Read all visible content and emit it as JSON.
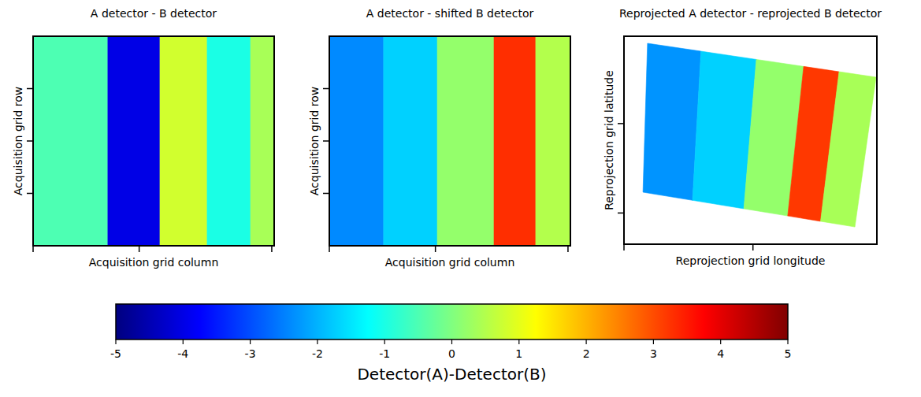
{
  "chart_data": [
    {
      "type": "heatmap",
      "title": "A detector - B detector",
      "x_label": "Acquisition grid column",
      "y_label": "Acquisition grid row",
      "xlim": [
        0,
        1
      ],
      "ylim": [
        0,
        1
      ],
      "xticks": [
        0,
        0.44,
        0.99
      ],
      "yticks": [
        0.25,
        0.5,
        0.75
      ],
      "tick_labels": false,
      "stripe_edges": [
        0,
        0.31,
        0.526,
        0.722,
        0.902,
        1
      ],
      "stripe_values": [
        -0.5,
        -4.0,
        0.8,
        -1.0,
        0.4
      ]
    },
    {
      "type": "heatmap",
      "title": "A detector - shifted B detector",
      "x_label": "Acquisition grid column",
      "y_label": "Acquisition grid row",
      "xlim": [
        0,
        1
      ],
      "ylim": [
        0,
        1
      ],
      "xticks": [
        0,
        0.44,
        0.99
      ],
      "yticks": [
        0.25,
        0.5,
        0.75
      ],
      "tick_labels": false,
      "stripe_edges": [
        0,
        0.225,
        0.448,
        0.683,
        0.856,
        1
      ],
      "stripe_values": [
        -2.4,
        -1.7,
        0.2,
        3.3,
        0.5
      ]
    },
    {
      "type": "heatmap",
      "title": "Reprojected A detector - reprojected B detector",
      "x_label": "Reprojection grid longitude",
      "y_label": "Reprojection grid latitude",
      "xlim": [
        0,
        1
      ],
      "ylim": [
        0,
        1
      ],
      "xticks": [
        0,
        0.51
      ],
      "yticks": [
        0.15,
        0.58
      ],
      "tick_labels": false,
      "footprint": [
        [
          0.093,
          0.966
        ],
        [
          0.997,
          0.803
        ],
        [
          0.913,
          0.083
        ],
        [
          0.075,
          0.25
        ]
      ],
      "stripe_edges": [
        0,
        0.234,
        0.476,
        0.683,
        0.838,
        1
      ],
      "stripe_values": [
        -2.3,
        -1.7,
        0.2,
        3.2,
        0.4
      ]
    }
  ],
  "colorbar": {
    "label": "Detector(A)-Detector(B)",
    "range": [
      -5,
      5
    ],
    "ticks": [
      -5,
      -4,
      -3,
      -2,
      -1,
      0,
      1,
      2,
      3,
      4,
      5
    ]
  }
}
